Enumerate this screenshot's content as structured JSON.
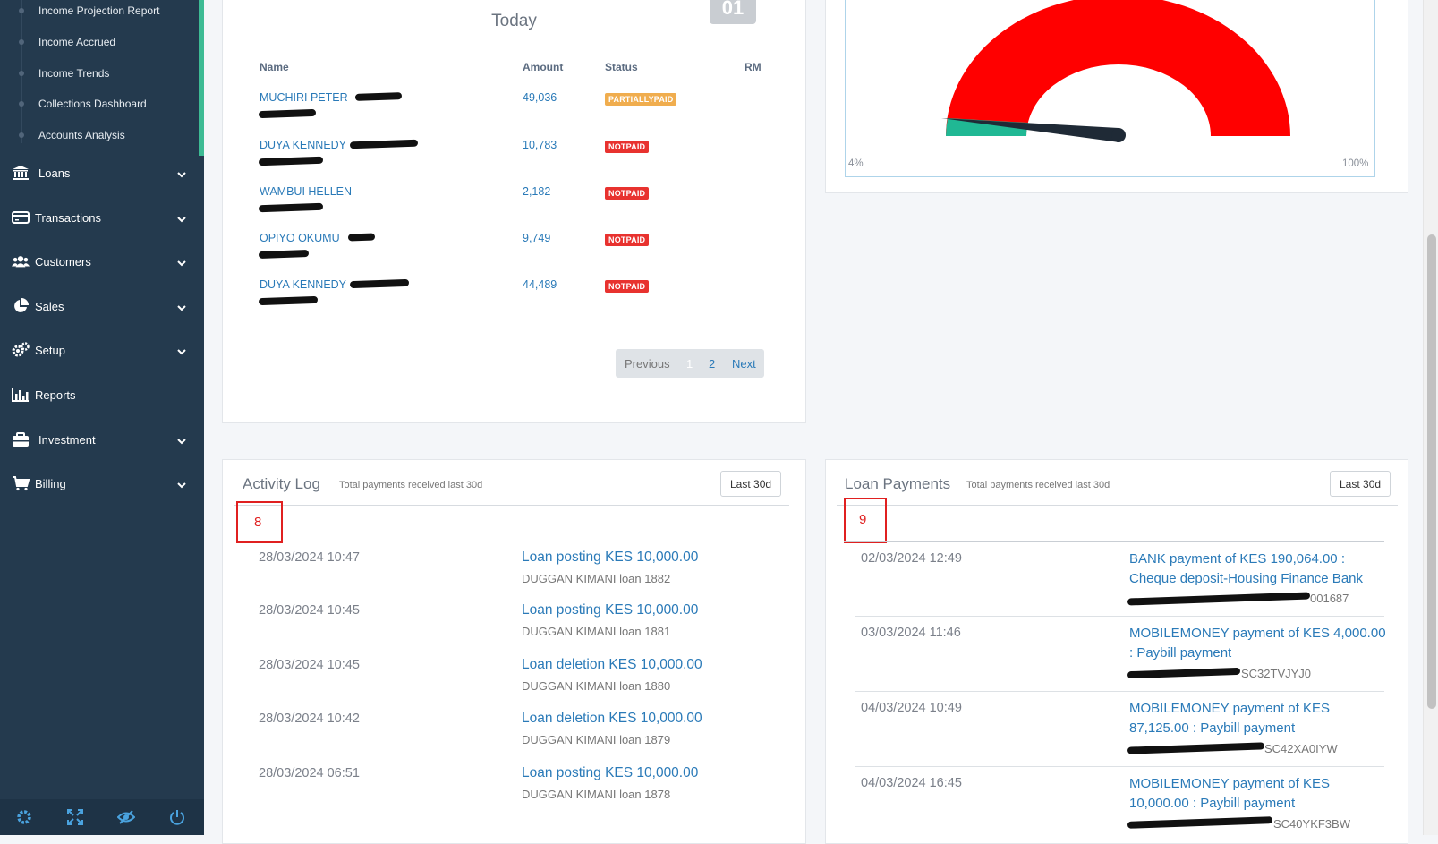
{
  "sidebar": {
    "sub_items": [
      "Income Projection Report",
      "Income Accrued",
      "Income Trends",
      "Collections Dashboard",
      "Accounts Analysis"
    ],
    "menu": [
      {
        "label": "Loans",
        "icon": "bank-icon",
        "has_chevron": true
      },
      {
        "label": "Transactions",
        "icon": "credit-card-icon",
        "has_chevron": true
      },
      {
        "label": "Customers",
        "icon": "users-icon",
        "has_chevron": true
      },
      {
        "label": "Sales",
        "icon": "pie-chart-icon",
        "has_chevron": true
      },
      {
        "label": "Setup",
        "icon": "gears-icon",
        "has_chevron": true
      },
      {
        "label": "Reports",
        "icon": "bar-chart-icon",
        "has_chevron": false
      },
      {
        "label": "Investment",
        "icon": "briefcase-icon",
        "has_chevron": true
      },
      {
        "label": "Billing",
        "icon": "cart-icon",
        "has_chevron": true
      }
    ],
    "footer_icons": [
      "settings-icon",
      "fullscreen-icon",
      "hide-icon",
      "power-icon"
    ]
  },
  "today": {
    "title": "Today",
    "badge": "01",
    "headers": {
      "name": "Name",
      "amount": "Amount",
      "status": "Status",
      "rm": "RM"
    },
    "rows": [
      {
        "name": "MUCHIRI PETER",
        "amount": "49,036",
        "status": "PARTIALLYPAID"
      },
      {
        "name": "DUYA KENNEDY",
        "amount": "10,783",
        "status": "NOTPAID"
      },
      {
        "name": "WAMBUI HELLEN",
        "amount": "2,182",
        "status": "NOTPAID"
      },
      {
        "name": "OPIYO OKUMU",
        "amount": "9,749",
        "status": "NOTPAID"
      },
      {
        "name": "DUYA KENNEDY",
        "amount": "44,489",
        "status": "NOTPAID"
      }
    ],
    "pager": {
      "previous": "Previous",
      "page1": "1",
      "page2": "2",
      "next": "Next"
    }
  },
  "gauge": {
    "min_label": "4%",
    "max_label": "100%",
    "value_fraction": 0.04,
    "colors": {
      "fill": "#ff0000",
      "low": "#20b894",
      "needle": "#1f2a36"
    }
  },
  "activity_log": {
    "title": "Activity Log",
    "subtitle": "Total payments received last 30d",
    "button": "Last 30d",
    "marker": "8",
    "entries": [
      {
        "date": "28/03/2024 10:47",
        "title": "Loan posting KES 10,000.00",
        "sub": "DUGGAN KIMANI loan 1882"
      },
      {
        "date": "28/03/2024 10:45",
        "title": "Loan posting KES 10,000.00",
        "sub": "DUGGAN KIMANI loan 1881"
      },
      {
        "date": "28/03/2024 10:45",
        "title": "Loan deletion KES 10,000.00",
        "sub": "DUGGAN KIMANI loan 1880"
      },
      {
        "date": "28/03/2024 10:42",
        "title": "Loan deletion KES 10,000.00",
        "sub": "DUGGAN KIMANI loan 1879"
      },
      {
        "date": "28/03/2024 06:51",
        "title": "Loan posting KES 10,000.00",
        "sub": "DUGGAN KIMANI loan 1878"
      }
    ]
  },
  "loan_payments": {
    "title": "Loan Payments",
    "subtitle": "Total payments received last 30d",
    "button": "Last 30d",
    "marker": "9",
    "entries": [
      {
        "date": "02/03/2024 12:49",
        "title": "BANK payment of KES 190,064.00 : Cheque deposit-Housing Finance Bank",
        "sub": "001687"
      },
      {
        "date": "03/03/2024 11:46",
        "title": "MOBILEMONEY payment of KES 4,000.00 : Paybill payment",
        "sub": "SC32TVJYJ0"
      },
      {
        "date": "04/03/2024 10:49",
        "title": "MOBILEMONEY payment of KES 87,125.00 : Paybill payment",
        "sub": "SC42XA0IYW"
      },
      {
        "date": "04/03/2024 16:45",
        "title": "MOBILEMONEY payment of KES 10,000.00 : Paybill payment",
        "sub": "SC40YKF3BW"
      }
    ]
  }
}
